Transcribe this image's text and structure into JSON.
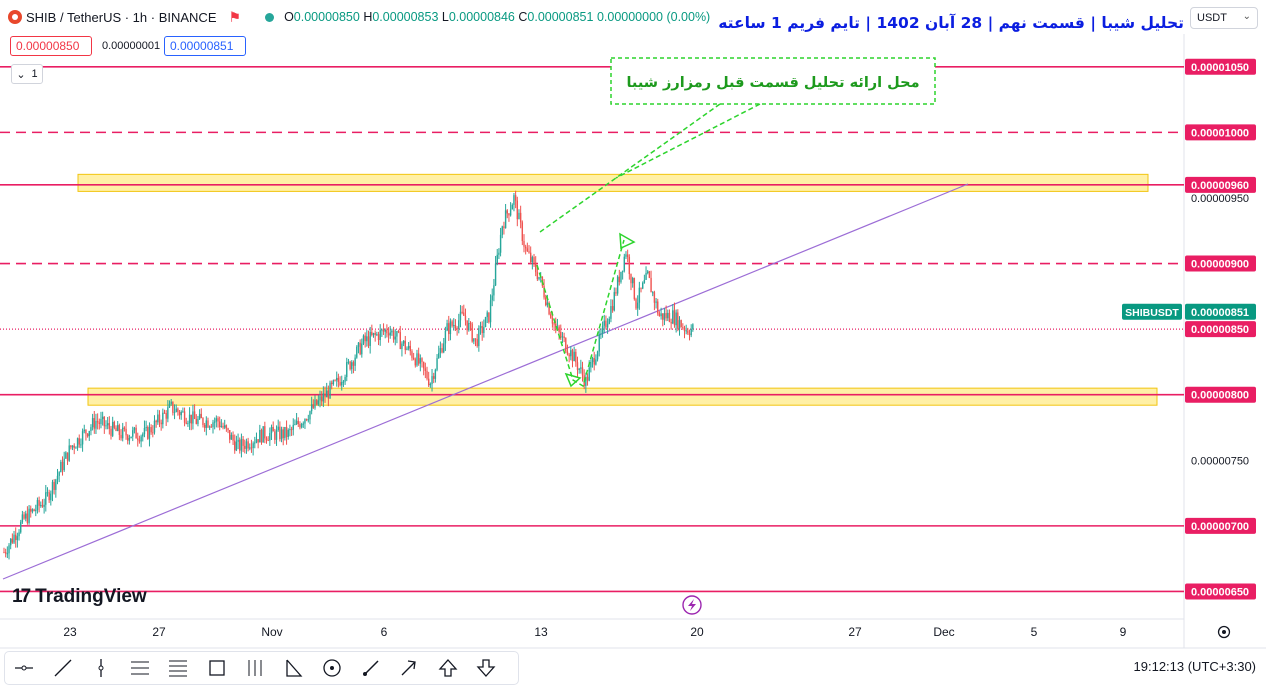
{
  "header": {
    "symbol": "SHIB / TetherUS · 1h · BINANCE",
    "ohlc": [
      {
        "k": "O",
        "v": "0.00000850"
      },
      {
        "k": "H",
        "v": "0.00000853"
      },
      {
        "k": "L",
        "v": "0.00000846"
      },
      {
        "k": "C",
        "v": "0.00000851"
      },
      {
        "k": "",
        "v": "0.00000000 (0.00%)"
      }
    ],
    "title_fa": "تحلیل شیبا | قسمت نهم | 28 آبان 1402 | تایم فریم 1 ساعته",
    "currency": "USDT"
  },
  "trade_panel": {
    "bid": "0.00000850",
    "spread": "0.00000001",
    "ask": "0.00000851"
  },
  "indicator_toggle": "1",
  "annotation_fa": "محل ارائه تحلیل قسمت قبل رمزارز شیبا",
  "watermark": "TradingView",
  "clock": "19:12:13 (UTC+3:30)",
  "colors": {
    "up": "#26a69a",
    "down": "#ef5350",
    "level": "#e91e63",
    "zone": "#ffe45c",
    "trend": "#9c6dd6",
    "annotation": "#2dd42d",
    "title": "#0b1ee0"
  },
  "toolbar_icons": [
    "horizontal-ray-icon",
    "trend-line-icon",
    "vertical-line-icon",
    "parallel-channel-icon",
    "fib-retracement-icon",
    "rectangle-icon",
    "long-position-icon",
    "triangle-pattern-icon",
    "circle-icon",
    "brush-icon",
    "arrow-icon",
    "arrow-up-icon",
    "arrow-down-icon"
  ],
  "chart_data": {
    "type": "candlestick",
    "symbol_label": "SHIBUSDT",
    "last_price": 8.51e-06,
    "ylim": [
      6.29e-06,
      1.075e-05
    ],
    "x_ticks": [
      "23",
      "27",
      "Nov",
      "6",
      "13",
      "20",
      "27",
      "Dec",
      "5",
      "9"
    ],
    "horizontal_levels": [
      {
        "price": 1.05e-05,
        "label": "0.00001050",
        "style": "solid"
      },
      {
        "price": 1e-05,
        "label": "0.00001000",
        "style": "dashed"
      },
      {
        "price": 9.6e-06,
        "label": "0.00000960",
        "style": "solid"
      },
      {
        "price": 9e-06,
        "label": "0.00000900",
        "style": "dashed"
      },
      {
        "price": 8.5e-06,
        "label": "0.00000850",
        "style": "dotted"
      },
      {
        "price": 8e-06,
        "label": "0.00000800",
        "style": "solid"
      },
      {
        "price": 7e-06,
        "label": "0.00000700",
        "style": "solid"
      },
      {
        "price": 6.5e-06,
        "label": "0.00000650",
        "style": "solid"
      }
    ],
    "axis_labels": [
      {
        "price": 9.5e-06,
        "label": "0.00000950"
      },
      {
        "price": 7.5e-06,
        "label": "0.00000750"
      }
    ],
    "zones": [
      {
        "from": 9.55e-06,
        "to": 9.68e-06
      },
      {
        "from": 7.92e-06,
        "to": 8.05e-06
      }
    ],
    "anchors": [
      [
        0,
        6.8e-06
      ],
      [
        12,
        7.05e-06
      ],
      [
        25,
        7.2e-06
      ],
      [
        40,
        7.6e-06
      ],
      [
        55,
        7.8e-06
      ],
      [
        70,
        7.7e-06
      ],
      [
        85,
        7.7e-06
      ],
      [
        100,
        7.9e-06
      ],
      [
        115,
        7.8e-06
      ],
      [
        128,
        7.8e-06
      ],
      [
        140,
        7.6e-06
      ],
      [
        155,
        7.7e-06
      ],
      [
        170,
        7.7e-06
      ],
      [
        185,
        7.9e-06
      ],
      [
        200,
        8.1e-06
      ],
      [
        215,
        8.4e-06
      ],
      [
        230,
        8.5e-06
      ],
      [
        245,
        8.3e-06
      ],
      [
        255,
        8.1e-06
      ],
      [
        265,
        8.5e-06
      ],
      [
        275,
        8.6e-06
      ],
      [
        282,
        8.4e-06
      ],
      [
        290,
        8.6e-06
      ],
      [
        298,
        9.3e-06
      ],
      [
        305,
        9.5e-06
      ],
      [
        312,
        9.1e-06
      ],
      [
        320,
        8.9e-06
      ],
      [
        330,
        8.5e-06
      ],
      [
        340,
        8.3e-06
      ],
      [
        348,
        8.1e-06
      ],
      [
        356,
        8.4e-06
      ],
      [
        364,
        8.7e-06
      ],
      [
        372,
        9.1e-06
      ],
      [
        378,
        8.7e-06
      ],
      [
        385,
        8.9e-06
      ],
      [
        392,
        8.6e-06
      ],
      [
        400,
        8.6e-06
      ],
      [
        408,
        8.5e-06
      ],
      [
        412,
        8.5e-06
      ]
    ]
  }
}
